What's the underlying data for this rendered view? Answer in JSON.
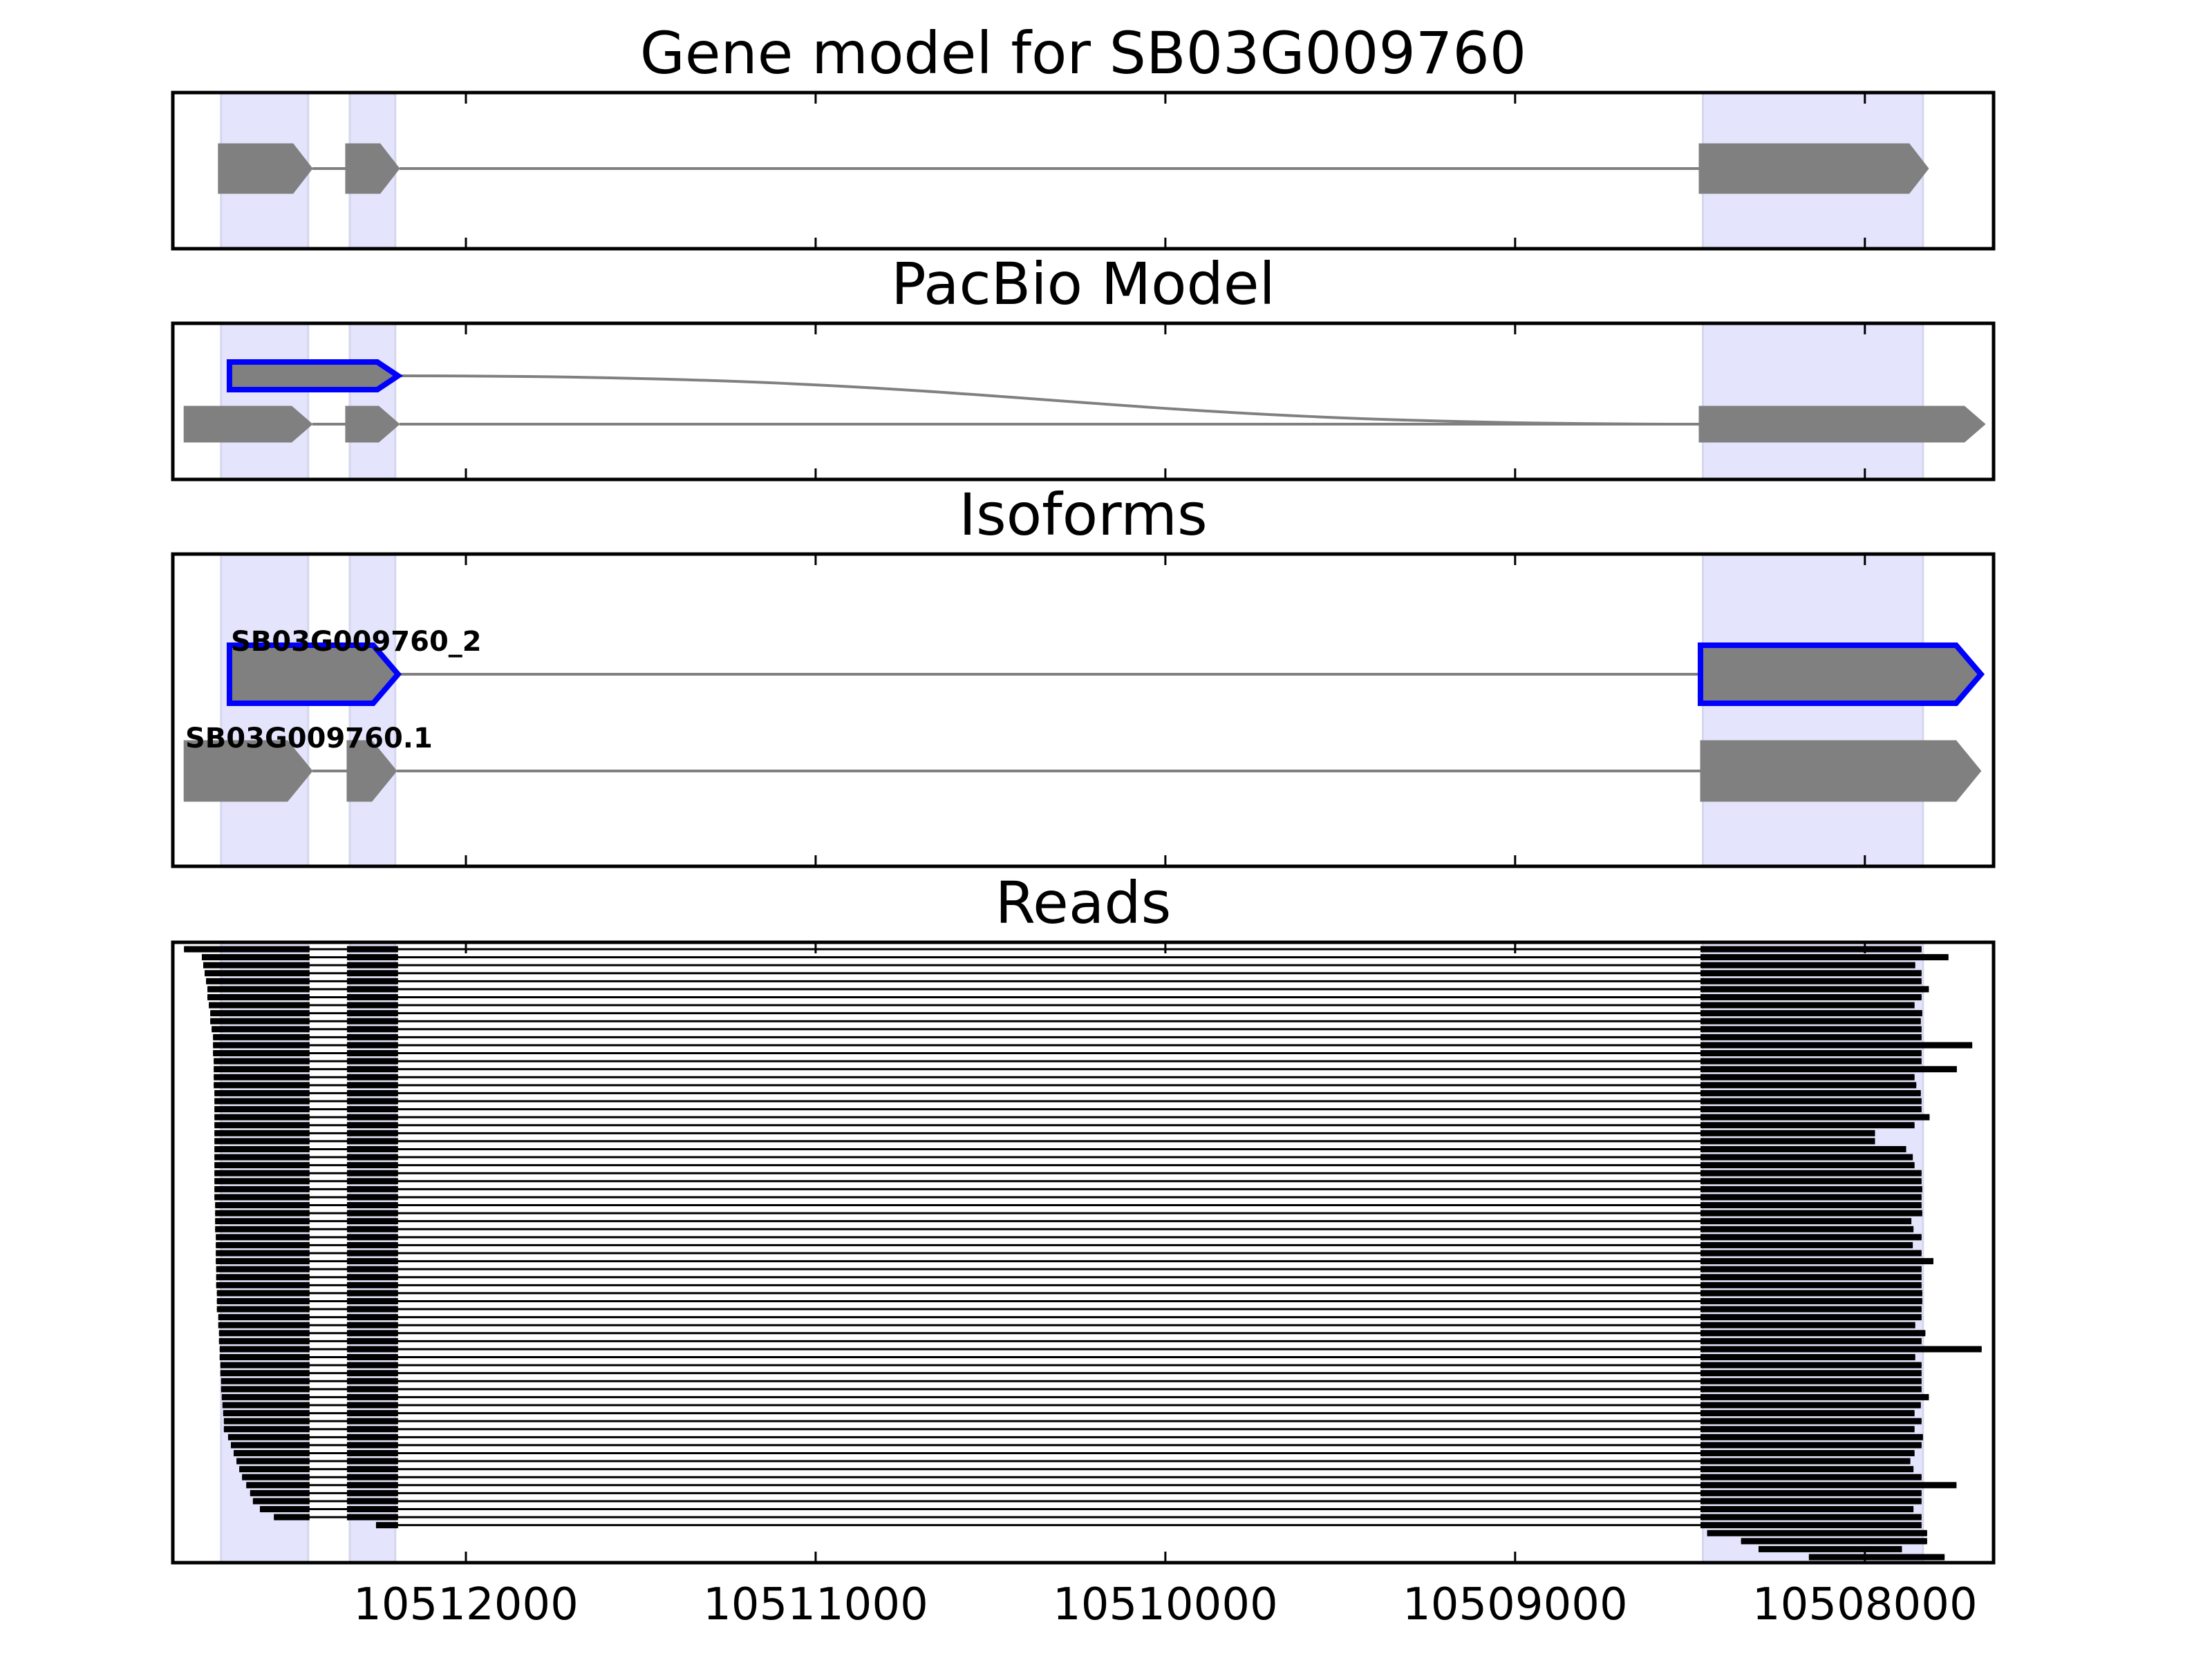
{
  "chart_data": {
    "type": "gene-track",
    "xlim": [
      10512838,
      10507632
    ],
    "x_reversed": true,
    "xticks": [
      10512000,
      10511000,
      10510000,
      10509000,
      10508000
    ],
    "xtick_labels": [
      "10512000",
      "10511000",
      "10510000",
      "10509000",
      "10508000"
    ],
    "grid": false,
    "colors": {
      "exon": "#808080",
      "highlight": "#0000ff",
      "shade": "#e4e4fc",
      "read": "#000000",
      "axis": "#000000"
    },
    "shaded_regions": [
      [
        10512700,
        10512451
      ],
      [
        10512332,
        10512202
      ],
      [
        10508463,
        10507834
      ]
    ],
    "panels": [
      {
        "title": "Gene model for SB03G009760",
        "tracks": [
          {
            "exons": [
              [
                10512708,
                10512439
              ],
              [
                10512344,
                10512190
              ],
              [
                10508474,
                10507818
              ]
            ],
            "highlight": false
          }
        ]
      },
      {
        "title": "PacBio Model",
        "tracks": [
          {
            "exons": [
              [
                10512676,
                10512194
              ]
            ],
            "highlight": true,
            "joins_to_track": 1,
            "join_to": 10508474
          },
          {
            "exons": [
              [
                10512806,
                10512439
              ],
              [
                10512344,
                10512190
              ],
              [
                10508474,
                10507656
              ]
            ],
            "highlight": false
          }
        ]
      },
      {
        "title": "Isoforms",
        "tracks": [
          {
            "label": "SB03G009760_2",
            "exons": [
              [
                10512676,
                10512194
              ],
              [
                10508470,
                10507668
              ]
            ],
            "highlight": true
          },
          {
            "label": "SB03G009760.1",
            "exons": [
              [
                10512806,
                10512439
              ],
              [
                10512340,
                10512198
              ],
              [
                10508470,
                10507668
              ]
            ],
            "highlight": false
          }
        ]
      },
      {
        "title": "Reads",
        "read_exons": [
          [
            null,
            10512447
          ],
          [
            10512340,
            10512194
          ],
          [
            10508470,
            null
          ]
        ],
        "reads": [
          [
            10512806,
            10507838
          ],
          [
            10512755,
            10507761
          ],
          [
            10512751,
            10507856
          ],
          [
            10512747,
            10507838
          ],
          [
            10512743,
            10507838
          ],
          [
            10512739,
            10507817
          ],
          [
            10512739,
            10507838
          ],
          [
            10512735,
            10507858
          ],
          [
            10512731,
            10507836
          ],
          [
            10512731,
            10507840
          ],
          [
            10512727,
            10507838
          ],
          [
            10512723,
            10507838
          ],
          [
            10512723,
            10507693
          ],
          [
            10512723,
            10507838
          ],
          [
            10512721,
            10507838
          ],
          [
            10512721,
            10507737
          ],
          [
            10512721,
            10507858
          ],
          [
            10512721,
            10507853
          ],
          [
            10512719,
            10507840
          ],
          [
            10512719,
            10507838
          ],
          [
            10512719,
            10507838
          ],
          [
            10512719,
            10507815
          ],
          [
            10512719,
            10507858
          ],
          [
            10512719,
            10507971
          ],
          [
            10512719,
            10507971
          ],
          [
            10512719,
            10507882
          ],
          [
            10512719,
            10507863
          ],
          [
            10512719,
            10507858
          ],
          [
            10512719,
            10507838
          ],
          [
            10512719,
            10507838
          ],
          [
            10512719,
            10507836
          ],
          [
            10512719,
            10507838
          ],
          [
            10512717,
            10507838
          ],
          [
            10512717,
            10507836
          ],
          [
            10512717,
            10507867
          ],
          [
            10512717,
            10507861
          ],
          [
            10512715,
            10507838
          ],
          [
            10512715,
            10507863
          ],
          [
            10512715,
            10507838
          ],
          [
            10512715,
            10507804
          ],
          [
            10512714,
            10507838
          ],
          [
            10512714,
            10507838
          ],
          [
            10512714,
            10507838
          ],
          [
            10512712,
            10507836
          ],
          [
            10512712,
            10507836
          ],
          [
            10512712,
            10507838
          ],
          [
            10512708,
            10507838
          ],
          [
            10512708,
            10507856
          ],
          [
            10512706,
            10507827
          ],
          [
            10512706,
            10507838
          ],
          [
            10512704,
            10507666
          ],
          [
            10512704,
            10507856
          ],
          [
            10512702,
            10507838
          ],
          [
            10512702,
            10507838
          ],
          [
            10512700,
            10507838
          ],
          [
            10512700,
            10507838
          ],
          [
            10512698,
            10507817
          ],
          [
            10512696,
            10507840
          ],
          [
            10512694,
            10507858
          ],
          [
            10512692,
            10507838
          ],
          [
            10512692,
            10507858
          ],
          [
            10512680,
            10507834
          ],
          [
            10512672,
            10507838
          ],
          [
            10512664,
            10507858
          ],
          [
            10512656,
            10507870
          ],
          [
            10512648,
            10507861
          ],
          [
            10512640,
            10507838
          ],
          [
            10512628,
            10507738
          ],
          [
            10512617,
            10507838
          ],
          [
            10512609,
            10507838
          ],
          [
            10512589,
            10507861
          ],
          [
            10512549,
            10507838
          ],
          [
            10512257,
            10507838
          ],
          [
            10508451,
            10507822
          ],
          [
            10508354,
            10507822
          ],
          [
            10508304,
            10507894
          ],
          [
            10508160,
            10507772
          ]
        ]
      }
    ]
  }
}
